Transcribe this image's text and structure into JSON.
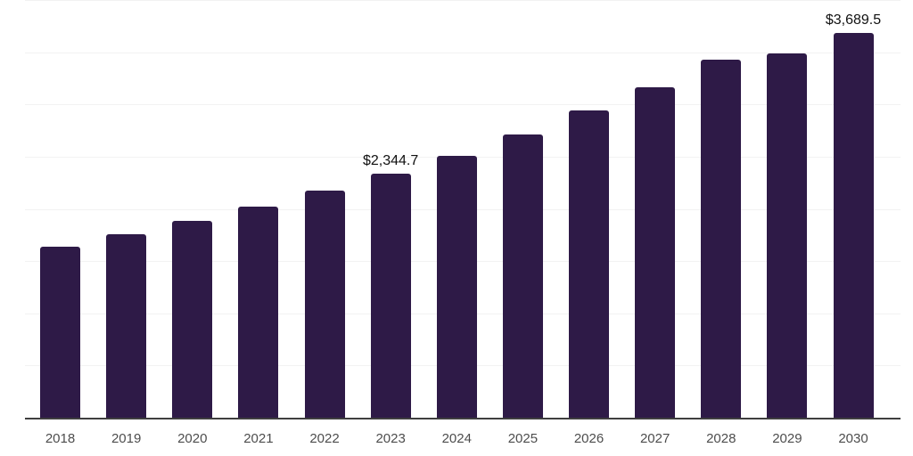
{
  "chart_data": {
    "type": "bar",
    "title": "",
    "xlabel": "",
    "ylabel": "",
    "categories": [
      "2018",
      "2019",
      "2020",
      "2021",
      "2022",
      "2023",
      "2024",
      "2025",
      "2026",
      "2027",
      "2028",
      "2029",
      "2030"
    ],
    "values": [
      1645,
      1765,
      1890,
      2030,
      2180,
      2344.7,
      2520,
      2720,
      2950,
      3175,
      3440,
      3500,
      3689.5
    ],
    "data_labels": {
      "2023": "$2,344.7",
      "2030": "$3,689.5"
    },
    "ylim": [
      0,
      4000
    ],
    "gridline_step": 500,
    "grid": "horizontal, unlabeled y-axis",
    "legend_position": "none"
  },
  "style": {
    "bar_color": "#2e1a47",
    "gridline_color": "#f2f2f2",
    "axis_line_color": "#3f3f3f",
    "tick_label_color": "#4d4d4d",
    "data_label_color": "#111111",
    "background_color": "#ffffff"
  }
}
